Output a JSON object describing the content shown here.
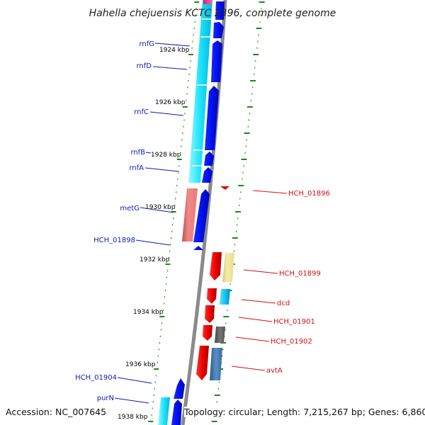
{
  "title": "Hahella chejuensis KCTC 2396, complete genome",
  "footer": {
    "accession": "Accession: NC_007645",
    "summary": "Topology: circular; Length: 7,215,267 bp; Genes: 6,860"
  },
  "colors": {
    "backbone": "#8a8a8a",
    "ruler": "#1a8a1a",
    "left_label": "#0b1db0",
    "right_label": "#d01010"
  },
  "kbp_ticks": [
    {
      "kbp": 1924,
      "label": "1924 kbp"
    },
    {
      "kbp": 1926,
      "label": "1926 kbp"
    },
    {
      "kbp": 1928,
      "label": "1928 kbp"
    },
    {
      "kbp": 1930,
      "label": "1930 kbp"
    },
    {
      "kbp": 1932,
      "label": "1932 kbp"
    },
    {
      "kbp": 1934,
      "label": "1934 kbp"
    },
    {
      "kbp": 1936,
      "label": "1936 kbp"
    },
    {
      "kbp": 1938,
      "label": "1938 kbp"
    }
  ],
  "gene_labels_left": [
    {
      "name": "rnfG"
    },
    {
      "name": "rnfD"
    },
    {
      "name": "rnfC"
    },
    {
      "name": "rnfB"
    },
    {
      "name": "rnfA"
    },
    {
      "name": "metG"
    },
    {
      "name": "HCH_01898"
    },
    {
      "name": "HCH_01904"
    },
    {
      "name": "purN"
    }
  ],
  "gene_labels_right": [
    {
      "name": "HCH_01896"
    },
    {
      "name": "HCH_01899"
    },
    {
      "name": "dcd"
    },
    {
      "name": "HCH_01901"
    },
    {
      "name": "HCH_01902"
    },
    {
      "name": "avtA"
    }
  ]
}
